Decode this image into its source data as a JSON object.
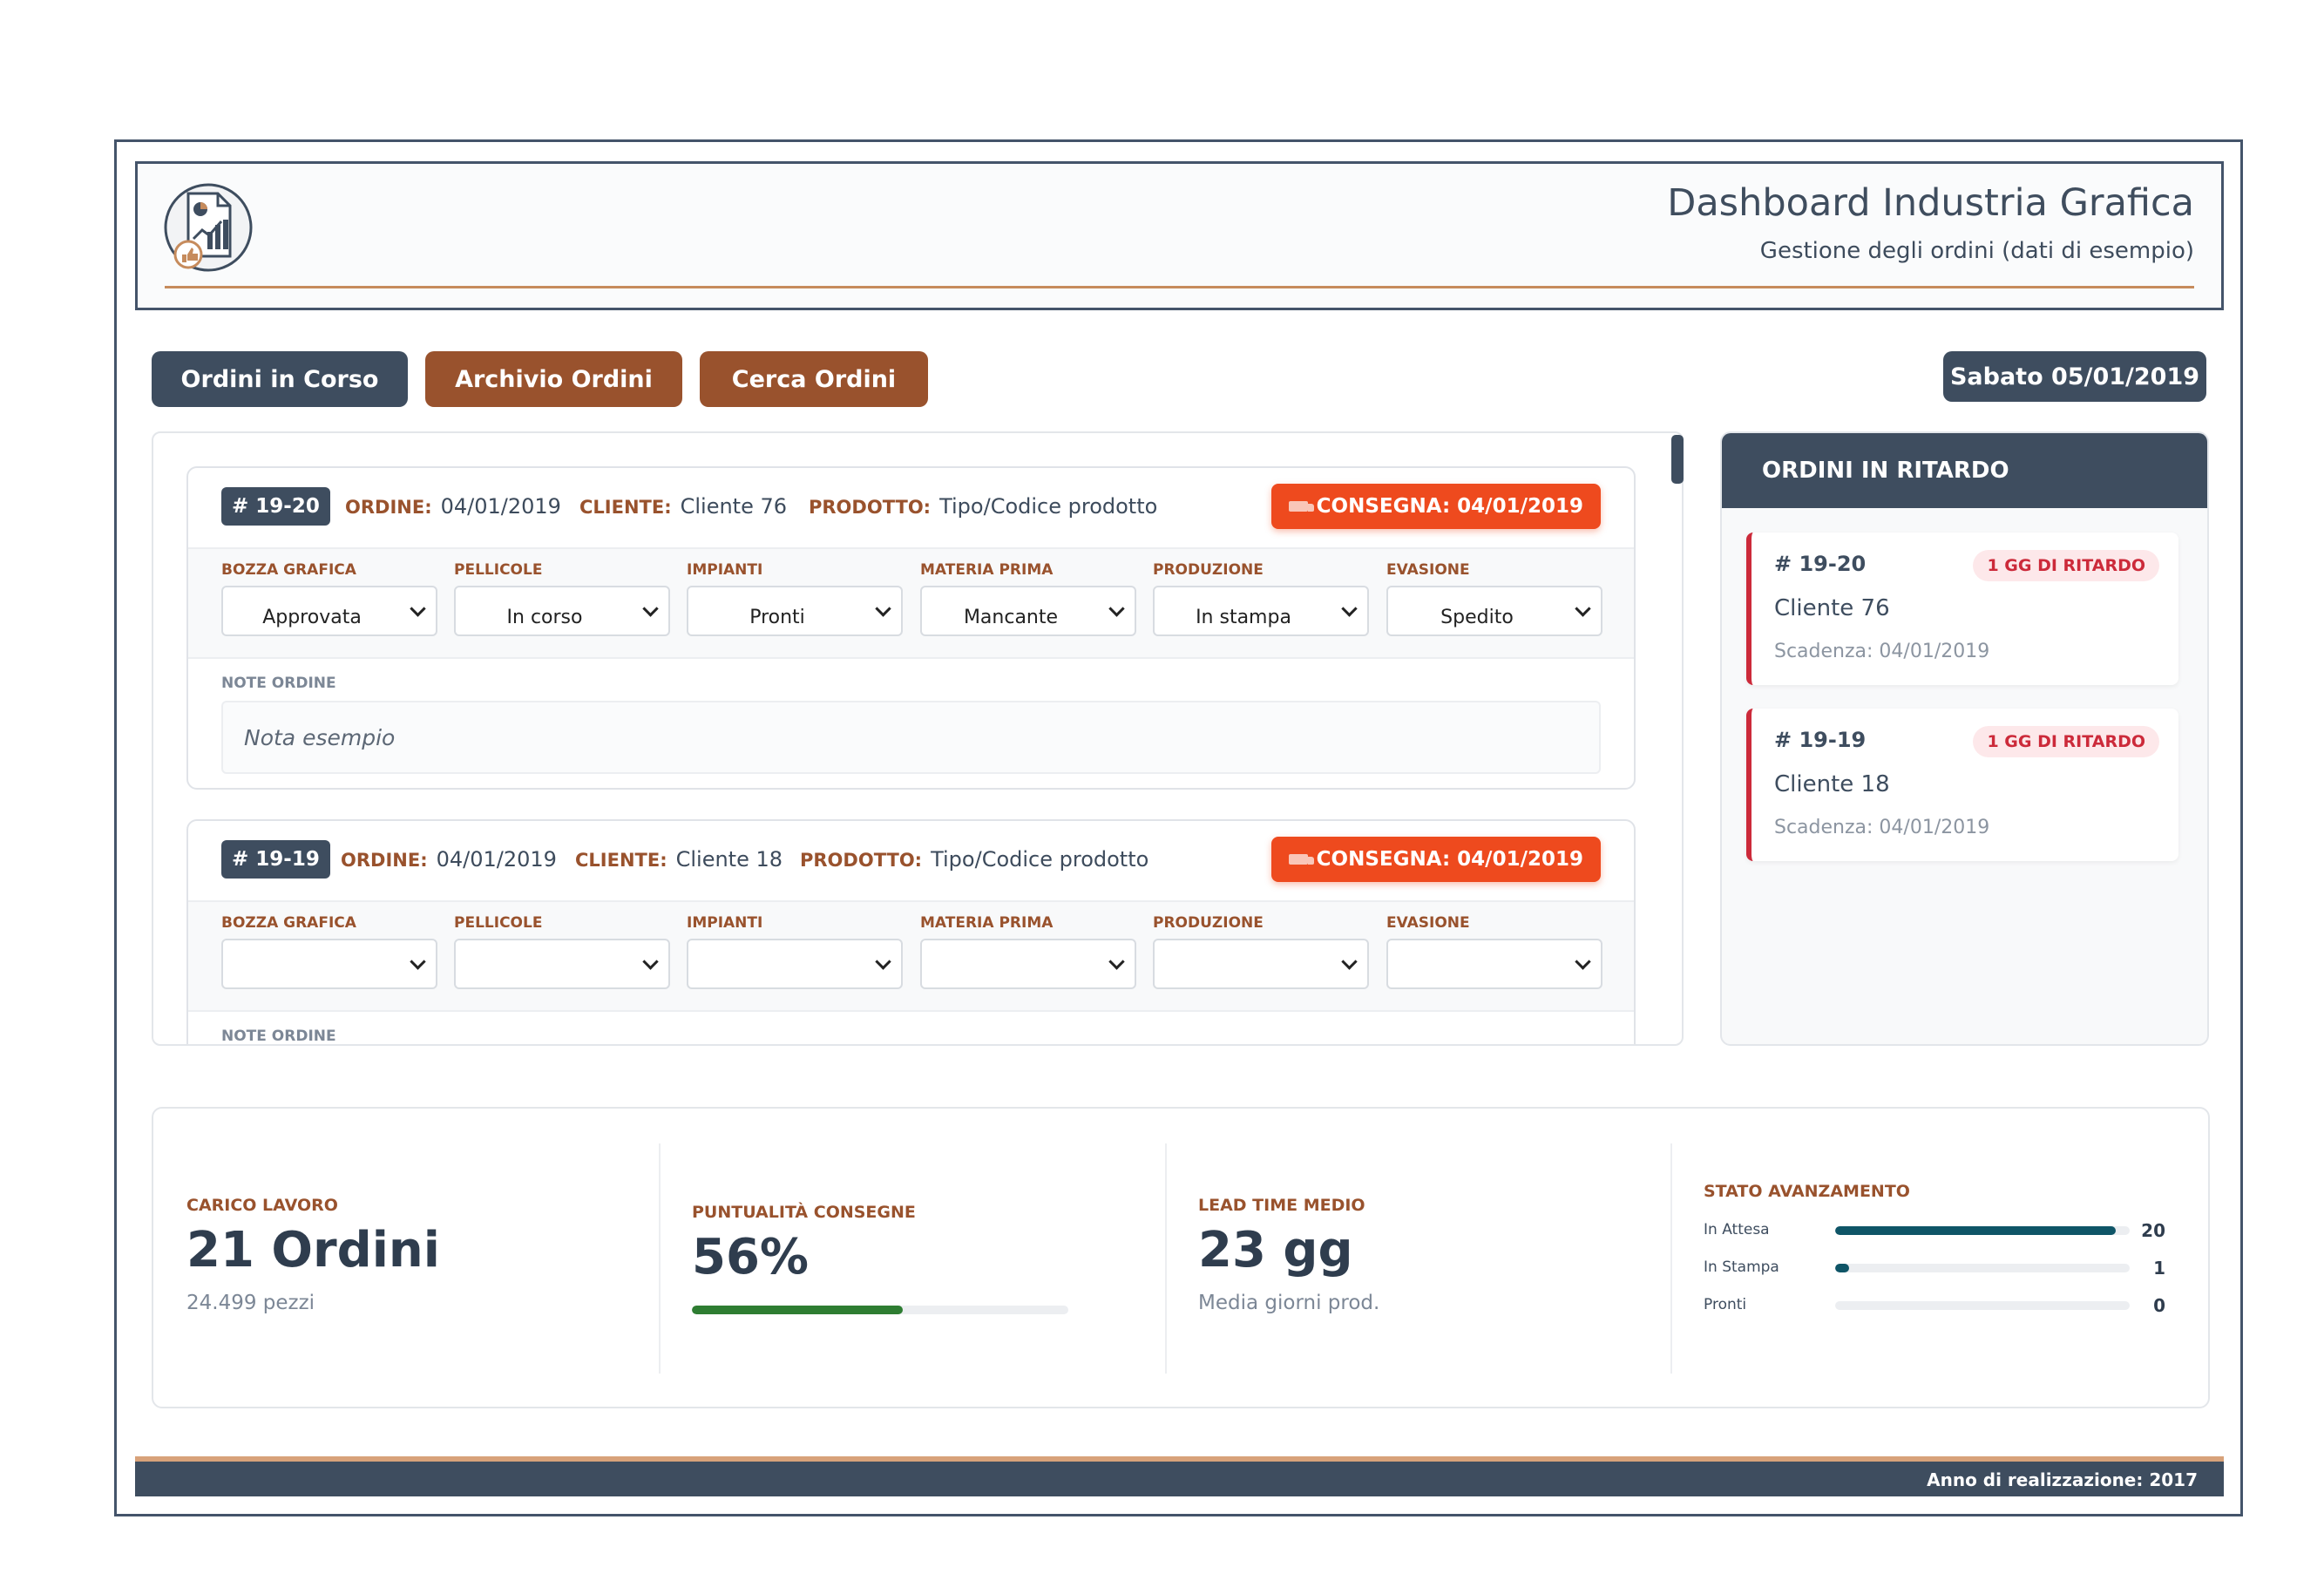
{
  "header": {
    "title": "Dashboard Industria Grafica",
    "subtitle": "Gestione degli ordini (dati di esempio)",
    "logo_icon": "report-chart-icon"
  },
  "nav": {
    "buttons": [
      {
        "label": "Ordini in Corso",
        "color": "#3e4d5f"
      },
      {
        "label": "Archivio Ordini",
        "color": "#99522d"
      },
      {
        "label": "Cerca Ordini",
        "color": "#99522d"
      }
    ],
    "date": "Sabato 05/01/2019"
  },
  "labels": {
    "ordine": "ORDINE:",
    "cliente": "CLIENTE:",
    "prodotto": "PRODOTTO:",
    "notes": "NOTE ORDINE",
    "stages": [
      "BOZZA GRAFICA",
      "PELLICOLE",
      "IMPIANTI",
      "MATERIA PRIMA",
      "PRODUZIONE",
      "EVASIONE"
    ]
  },
  "orders": [
    {
      "id": "# 19-20",
      "order_date": "04/01/2019",
      "client": "Cliente 76",
      "product": "Tipo/Codice prodotto",
      "delivery": "CONSEGNA: 04/01/2019",
      "stages": [
        "Approvata",
        "In corso",
        "Pronti",
        "Mancante",
        "In stampa",
        "Spedito"
      ],
      "note": "Nota esempio"
    },
    {
      "id": "# 19-19",
      "order_date": "04/01/2019",
      "client": "Cliente 18",
      "product": "Tipo/Codice prodotto",
      "delivery": "CONSEGNA: 04/01/2019",
      "stages": [
        "",
        "",
        "",
        "",
        "",
        ""
      ],
      "note": ""
    }
  ],
  "late": {
    "title": "ORDINI IN RITARDO",
    "items": [
      {
        "id": "# 19-20",
        "badge": "1 GG DI RITARDO",
        "client": "Cliente 76",
        "due": "Scadenza: 04/01/2019"
      },
      {
        "id": "# 19-19",
        "badge": "1 GG DI RITARDO",
        "client": "Cliente 18",
        "due": "Scadenza: 04/01/2019"
      }
    ]
  },
  "stats": {
    "workload": {
      "label": "CARICO LAVORO",
      "value": "21 Ordini",
      "sub": "24.499 pezzi"
    },
    "punctuality": {
      "label": "PUNTUALITÀ CONSEGNE",
      "value": "56%",
      "progress": 0.56
    },
    "lead_time": {
      "label": "LEAD TIME MEDIO",
      "value": "23 gg",
      "sub": "Media giorni prod."
    },
    "progress": {
      "label": "STATO AVANZAMENTO",
      "rows": [
        {
          "name": "In Attesa",
          "count": "20",
          "fraction": 0.952
        },
        {
          "name": "In Stampa",
          "count": "1",
          "fraction": 0.048
        },
        {
          "name": "Pronti",
          "count": "0",
          "fraction": 0
        }
      ]
    }
  },
  "footer": {
    "text": "Anno di realizzazione: 2017"
  },
  "colors": {
    "accent_dark": "#3e4d5f",
    "accent_brown": "#99522d",
    "alert": "#ee4a1e",
    "late_red": "#cc2a3a",
    "bar": "#0f5567",
    "punctuality_bar": "#2e7d32"
  }
}
